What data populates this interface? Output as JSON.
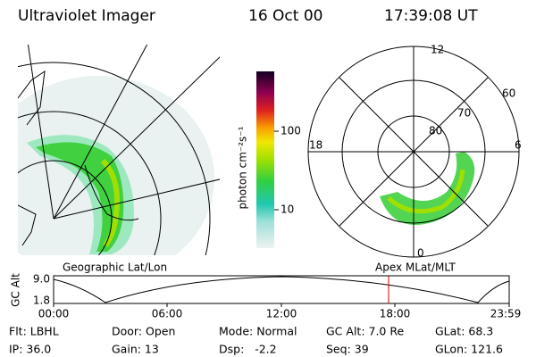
{
  "header": {
    "instrument": "Ultraviolet Imager",
    "date": "16 Oct 00",
    "time": "17:39:08 UT"
  },
  "colorbar": {
    "label": "photon cm⁻²s⁻¹",
    "ticks": [
      "100",
      "10"
    ]
  },
  "polar_plot": {
    "mlt_labels": [
      "12",
      "18",
      "6",
      "0"
    ],
    "lat_labels": [
      "60",
      "70",
      "80"
    ]
  },
  "captions": {
    "left": "Geographic Lat/Lon",
    "right": "Apex MLat/MLT"
  },
  "altitude_plot": {
    "ylabel": "GC Alt",
    "yticks": [
      "9.0",
      "1.8"
    ],
    "xticks": [
      "00:00",
      "06:00",
      "12:00",
      "18:00",
      "23:59"
    ]
  },
  "status": {
    "rows": [
      [
        "Flt: LBHL",
        "Door: Open",
        "Mode: Normal",
        "GC Alt: 7.0 Re",
        "GLat: 68.3"
      ],
      [
        "IP: 36.0",
        "Gain: 13",
        "Dsp:   -2.2",
        "Seq: 39",
        "GLon: 121.6"
      ]
    ]
  }
}
